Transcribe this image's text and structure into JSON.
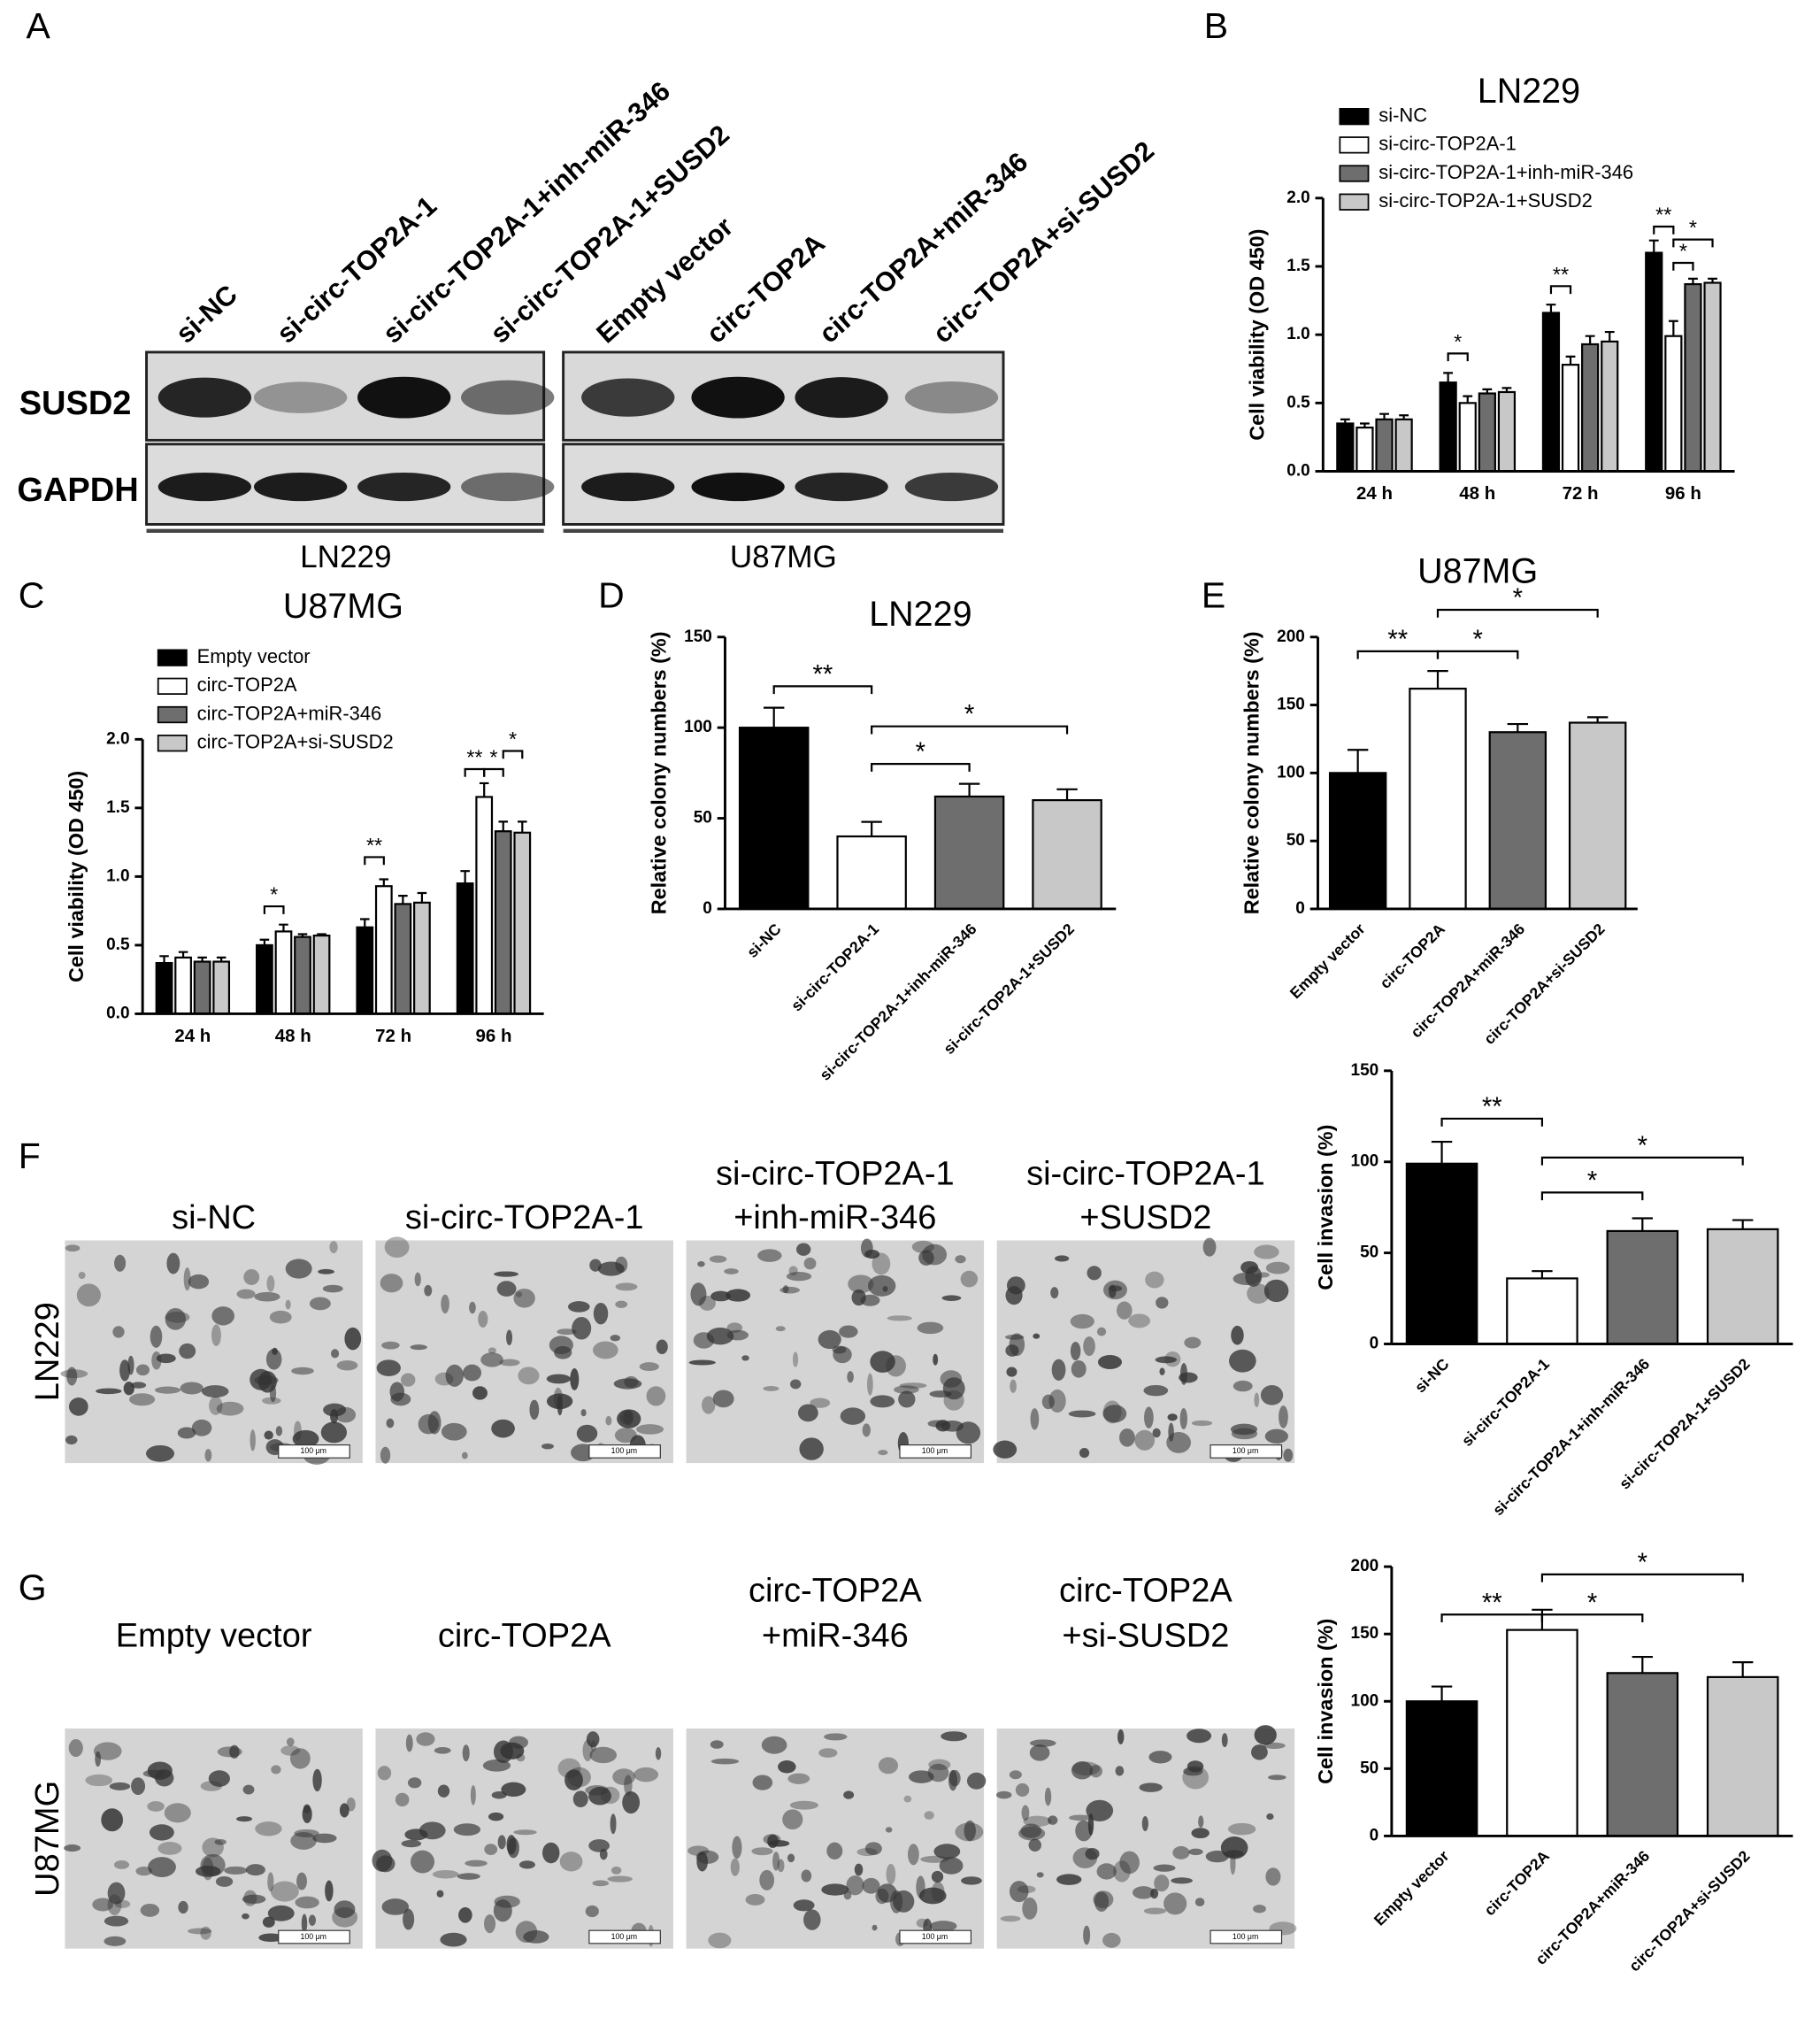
{
  "panel_letters": [
    "A",
    "B",
    "C",
    "D",
    "E",
    "F",
    "G"
  ],
  "blot": {
    "lanes": [
      "si-NC",
      "si-circ-TOP2A-1",
      "si-circ-TOP2A-1+inh-miR-346",
      "si-circ-TOP2A-1+SUSD2",
      "Empty vector",
      "circ-TOP2A",
      "circ-TOP2A+miR-346",
      "circ-TOP2A+si-SUSD2"
    ],
    "rows": [
      "SUSD2",
      "GAPDH"
    ],
    "groups": [
      "LN229",
      "U87MG"
    ]
  },
  "micrographs": [
    {
      "row_label": "LN229",
      "titles": [
        [
          "si-NC"
        ],
        [
          "si-circ-TOP2A-1"
        ],
        [
          "si-circ-TOP2A-1",
          "+inh-miR-346"
        ],
        [
          "si-circ-TOP2A-1",
          "+SUSD2"
        ]
      ]
    },
    {
      "row_label": "U87MG",
      "titles": [
        [
          "Empty vector"
        ],
        [
          "circ-TOP2A"
        ],
        [
          "circ-TOP2A",
          "+miR-346"
        ],
        [
          "circ-TOP2A",
          "+si-SUSD2"
        ]
      ]
    }
  ],
  "scale_bar": "100 μm",
  "chart_data": [
    {
      "type": "grouped_bar",
      "title": "LN229",
      "y_label": "Cell viability (OD 450)",
      "categories": [
        "24 h",
        "48 h",
        "72 h",
        "96 h"
      ],
      "series": [
        {
          "name": "si-NC",
          "color": "#000000",
          "values": [
            0.35,
            0.65,
            1.16,
            1.6
          ],
          "errors": [
            0.03,
            0.07,
            0.06,
            0.09
          ]
        },
        {
          "name": "si-circ-TOP2A-1",
          "color": "#ffffff",
          "values": [
            0.32,
            0.5,
            0.78,
            0.99
          ],
          "errors": [
            0.03,
            0.05,
            0.06,
            0.11
          ]
        },
        {
          "name": "si-circ-TOP2A-1+inh-miR-346",
          "color": "#6e6e6e",
          "values": [
            0.38,
            0.57,
            0.93,
            1.37
          ],
          "errors": [
            0.04,
            0.03,
            0.06,
            0.04
          ]
        },
        {
          "name": "si-circ-TOP2A-1+SUSD2",
          "color": "#c8c8c8",
          "values": [
            0.38,
            0.58,
            0.95,
            1.38
          ],
          "errors": [
            0.03,
            0.03,
            0.07,
            0.03
          ]
        }
      ],
      "ylim": [
        0,
        2
      ],
      "yticks": [
        {
          "value": 0,
          "label": "0.0"
        },
        0.5,
        {
          "value": 1,
          "label": "1.0"
        },
        1.5,
        {
          "value": 2,
          "label": "2.0"
        }
      ],
      "annotations": [
        "*",
        "**",
        "**",
        "*",
        "*"
      ]
    },
    {
      "type": "grouped_bar",
      "title": "U87MG",
      "y_label": "Cell viability (OD 450)",
      "categories": [
        "24 h",
        "48 h",
        "72 h",
        "96 h"
      ],
      "series": [
        {
          "name": "Empty vector",
          "color": "#000000",
          "values": [
            0.37,
            0.5,
            0.63,
            0.95
          ],
          "errors": [
            0.05,
            0.04,
            0.06,
            0.09
          ]
        },
        {
          "name": "circ-TOP2A",
          "color": "#ffffff",
          "values": [
            0.41,
            0.6,
            0.93,
            1.58
          ],
          "errors": [
            0.04,
            0.05,
            0.05,
            0.1
          ]
        },
        {
          "name": "circ-TOP2A+miR-346",
          "color": "#6e6e6e",
          "values": [
            0.38,
            0.56,
            0.8,
            1.33
          ],
          "errors": [
            0.03,
            0.02,
            0.06,
            0.07
          ]
        },
        {
          "name": "circ-TOP2A+si-SUSD2",
          "color": "#c8c8c8",
          "values": [
            0.38,
            0.57,
            0.81,
            1.32
          ],
          "errors": [
            0.03,
            0.01,
            0.07,
            0.08
          ]
        }
      ],
      "ylim": [
        0,
        2
      ],
      "yticks": [
        {
          "value": 0,
          "label": "0.0"
        },
        0.5,
        {
          "value": 1,
          "label": "1.0"
        },
        1.5,
        {
          "value": 2,
          "label": "2.0"
        }
      ],
      "annotations": [
        "*",
        "**",
        "**",
        "*",
        "*"
      ]
    },
    {
      "type": "bar",
      "title": "LN229",
      "y_label": "Relative colony numbers (%)",
      "categories": [
        "si-NC",
        "si-circ-TOP2A-1",
        "si-circ-TOP2A-1+inh-miR-346",
        "si-circ-TOP2A-1+SUSD2"
      ],
      "values": [
        100,
        40,
        62,
        60
      ],
      "errors": [
        11,
        8,
        7,
        6
      ],
      "colors": [
        "#000000",
        "#ffffff",
        "#6e6e6e",
        "#c8c8c8"
      ],
      "ylim": [
        0,
        150
      ],
      "yticks": [
        0,
        50,
        100,
        150
      ],
      "annotations": [
        "**",
        "*",
        "*"
      ]
    },
    {
      "type": "bar",
      "title": "U87MG",
      "y_label": "Relative colony numbers (%)",
      "categories": [
        "Empty vector",
        "circ-TOP2A",
        "circ-TOP2A+miR-346",
        "circ-TOP2A+si-SUSD2"
      ],
      "values": [
        100,
        162,
        130,
        137
      ],
      "errors": [
        17,
        13,
        6,
        4
      ],
      "colors": [
        "#000000",
        "#ffffff",
        "#6e6e6e",
        "#c8c8c8"
      ],
      "ylim": [
        0,
        200
      ],
      "yticks": [
        0,
        50,
        100,
        150,
        200
      ],
      "annotations": [
        "**",
        "*",
        "*"
      ]
    },
    {
      "type": "bar",
      "y_label": "Cell invasion (%)",
      "categories": [
        "si-NC",
        "si-circ-TOP2A-1",
        "si-circ-TOP2A-1+inh-miR-346",
        "si-circ-TOP2A-1+SUSD2"
      ],
      "values": [
        99,
        36,
        62,
        63
      ],
      "errors": [
        12,
        4,
        7,
        5
      ],
      "colors": [
        "#000000",
        "#ffffff",
        "#6e6e6e",
        "#c8c8c8"
      ],
      "ylim": [
        0,
        150
      ],
      "yticks": [
        0,
        50,
        100,
        150
      ],
      "annotations": [
        "**",
        "*",
        "*"
      ]
    },
    {
      "type": "bar",
      "y_label": "Cell invasion (%)",
      "categories": [
        "Empty vector",
        "circ-TOP2A",
        "circ-TOP2A+miR-346",
        "circ-TOP2A+si-SUSD2"
      ],
      "values": [
        100,
        153,
        121,
        118
      ],
      "errors": [
        11,
        15,
        12,
        11
      ],
      "colors": [
        "#000000",
        "#ffffff",
        "#6e6e6e",
        "#c8c8c8"
      ],
      "ylim": [
        0,
        200
      ],
      "yticks": [
        0,
        50,
        100,
        150,
        200
      ],
      "annotations": [
        "**",
        "*",
        "*"
      ]
    }
  ]
}
